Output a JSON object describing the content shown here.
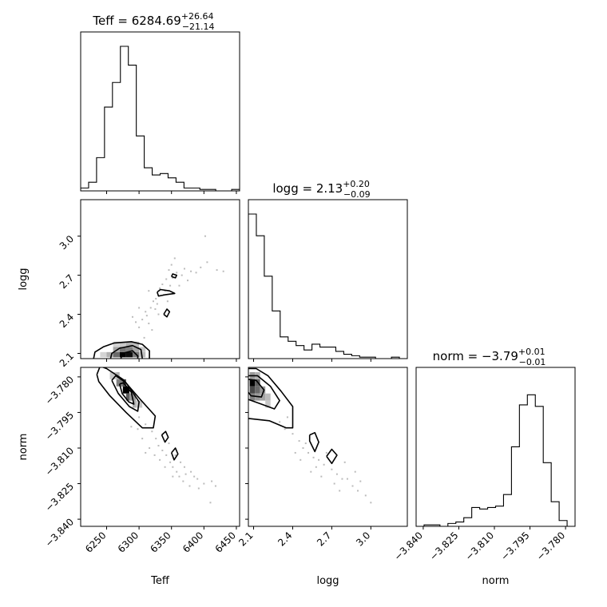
{
  "chart_data": {
    "type": "corner",
    "parameters": [
      {
        "name": "Teff",
        "label": "Teff",
        "median": "6284.69",
        "plus": "+26.64",
        "minus": "−21.14",
        "range": [
          6210,
          6455
        ],
        "ticks": [
          6250,
          6300,
          6350,
          6400,
          6450
        ],
        "tick_labels": [
          "6250",
          "6300",
          "6350",
          "6400",
          "6450"
        ]
      },
      {
        "name": "logg",
        "label": "logg",
        "median": "2.13",
        "plus": "+0.20",
        "minus": "−0.09",
        "range": [
          2.06,
          3.28
        ],
        "ticks": [
          2.1,
          2.4,
          2.7,
          3.0
        ],
        "tick_labels": [
          "2.1",
          "2.4",
          "2.7",
          "3.0"
        ]
      },
      {
        "name": "norm",
        "label": "norm",
        "median": "−3.79",
        "plus": "+0.01",
        "minus": "−0.01",
        "range": [
          -3.843,
          -3.776
        ],
        "ticks": [
          -3.84,
          -3.825,
          -3.81,
          -3.795,
          -3.78
        ],
        "tick_labels": [
          "−3.840",
          "−3.825",
          "−3.810",
          "−3.795",
          "−3.780"
        ]
      }
    ],
    "titles": [
      {
        "prefix": "Teff = 6284.69",
        "plus": "+26.64",
        "minus": "−21.14"
      },
      {
        "prefix": "logg = 2.13",
        "plus": "+0.20",
        "minus": "−0.09"
      },
      {
        "prefix": "norm = −3.79",
        "plus": "+0.01",
        "minus": "−0.01"
      }
    ],
    "histograms": {
      "Teff": [
        0.02,
        0.06,
        0.23,
        0.58,
        0.75,
        1.0,
        0.87,
        0.38,
        0.16,
        0.11,
        0.12,
        0.09,
        0.06,
        0.02,
        0.02,
        0.01,
        0.01,
        0.0,
        0.0,
        0.01
      ],
      "logg": [
        1.0,
        0.85,
        0.57,
        0.33,
        0.15,
        0.12,
        0.09,
        0.06,
        0.1,
        0.08,
        0.08,
        0.05,
        0.03,
        0.02,
        0.01,
        0.01,
        0.0,
        0.0,
        0.01,
        0.0
      ],
      "norm": [
        0.0,
        0.01,
        0.01,
        0.0,
        0.02,
        0.03,
        0.06,
        0.13,
        0.12,
        0.13,
        0.14,
        0.22,
        0.55,
        0.84,
        0.91,
        0.83,
        0.44,
        0.17,
        0.04,
        0.0
      ]
    },
    "density_cells": {
      "Teff_logg": [
        {
          "x": 6275,
          "y": 2.09,
          "v": 1.0
        },
        {
          "x": 6285,
          "y": 2.09,
          "v": 0.95
        },
        {
          "x": 6265,
          "y": 2.09,
          "v": 0.55
        },
        {
          "x": 6295,
          "y": 2.09,
          "v": 0.5
        },
        {
          "x": 6275,
          "y": 2.13,
          "v": 0.5
        },
        {
          "x": 6285,
          "y": 2.13,
          "v": 0.45
        },
        {
          "x": 6265,
          "y": 2.13,
          "v": 0.3
        },
        {
          "x": 6295,
          "y": 2.13,
          "v": 0.3
        },
        {
          "x": 6255,
          "y": 2.09,
          "v": 0.25
        },
        {
          "x": 6305,
          "y": 2.09,
          "v": 0.2
        },
        {
          "x": 6285,
          "y": 2.17,
          "v": 0.25
        },
        {
          "x": 6295,
          "y": 2.17,
          "v": 0.2
        },
        {
          "x": 6275,
          "y": 2.17,
          "v": 0.15
        },
        {
          "x": 6265,
          "y": 2.17,
          "v": 0.1
        },
        {
          "x": 6305,
          "y": 2.13,
          "v": 0.15
        },
        {
          "x": 6245,
          "y": 2.09,
          "v": 0.1
        }
      ],
      "Teff_norm": [
        {
          "x": 6280,
          "y": -3.7855,
          "v": 1.0
        },
        {
          "x": 6275,
          "y": -3.7825,
          "v": 0.7
        },
        {
          "x": 6285,
          "y": -3.7885,
          "v": 0.6
        },
        {
          "x": 6270,
          "y": -3.7825,
          "v": 0.45
        },
        {
          "x": 6290,
          "y": -3.7885,
          "v": 0.35
        },
        {
          "x": 6265,
          "y": -3.7795,
          "v": 0.25
        },
        {
          "x": 6295,
          "y": -3.7915,
          "v": 0.25
        },
        {
          "x": 6260,
          "y": -3.7795,
          "v": 0.15
        },
        {
          "x": 6300,
          "y": -3.7915,
          "v": 0.15
        }
      ],
      "logg_norm": [
        {
          "x": 2.09,
          "y": -3.7825,
          "v": 1.0
        },
        {
          "x": 2.09,
          "y": -3.7855,
          "v": 0.7
        },
        {
          "x": 2.13,
          "y": -3.7825,
          "v": 0.6
        },
        {
          "x": 2.13,
          "y": -3.7855,
          "v": 0.55
        },
        {
          "x": 2.09,
          "y": -3.7885,
          "v": 0.45
        },
        {
          "x": 2.17,
          "y": -3.7855,
          "v": 0.35
        },
        {
          "x": 2.17,
          "y": -3.7885,
          "v": 0.3
        },
        {
          "x": 2.13,
          "y": -3.7885,
          "v": 0.35
        },
        {
          "x": 2.21,
          "y": -3.7885,
          "v": 0.2
        },
        {
          "x": 2.09,
          "y": -3.7795,
          "v": 0.35
        },
        {
          "x": 2.13,
          "y": -3.7795,
          "v": 0.25
        },
        {
          "x": 2.21,
          "y": -3.7915,
          "v": 0.15
        }
      ]
    },
    "contours": {
      "Teff_logg": [
        [
          [
            6230,
            2.06
          ],
          [
            6232,
            2.11
          ],
          [
            6245,
            2.15
          ],
          [
            6262,
            2.18
          ],
          [
            6288,
            2.19
          ],
          [
            6305,
            2.17
          ],
          [
            6316,
            2.12
          ],
          [
            6316,
            2.06
          ]
        ],
        [
          [
            6256,
            2.06
          ],
          [
            6258,
            2.1
          ],
          [
            6270,
            2.14
          ],
          [
            6290,
            2.16
          ],
          [
            6303,
            2.13
          ],
          [
            6305,
            2.06
          ]
        ],
        [
          [
            6272,
            2.06
          ],
          [
            6274,
            2.1
          ],
          [
            6290,
            2.12
          ],
          [
            6298,
            2.08
          ],
          [
            6298,
            2.06
          ]
        ],
        [
          [
            6338,
            2.4
          ],
          [
            6343,
            2.38
          ],
          [
            6347,
            2.42
          ],
          [
            6343,
            2.44
          ],
          [
            6338,
            2.4
          ]
        ],
        [
          [
            6328,
            2.57
          ],
          [
            6333,
            2.59
          ],
          [
            6347,
            2.58
          ],
          [
            6355,
            2.56
          ],
          [
            6340,
            2.55
          ],
          [
            6330,
            2.54
          ],
          [
            6328,
            2.57
          ]
        ],
        [
          [
            6350,
            2.69
          ],
          [
            6356,
            2.68
          ],
          [
            6358,
            2.7
          ],
          [
            6352,
            2.71
          ],
          [
            6350,
            2.69
          ]
        ]
      ],
      "Teff_norm": [
        [
          [
            6235,
            -3.779
          ],
          [
            6240,
            -3.7755
          ],
          [
            6250,
            -3.7765
          ],
          [
            6275,
            -3.781
          ],
          [
            6302,
            -3.7895
          ],
          [
            6325,
            -3.7965
          ],
          [
            6322,
            -3.8015
          ],
          [
            6305,
            -3.8015
          ],
          [
            6280,
            -3.795
          ],
          [
            6255,
            -3.788
          ],
          [
            6238,
            -3.782
          ],
          [
            6235,
            -3.779
          ]
        ],
        [
          [
            6258,
            -3.7815
          ],
          [
            6264,
            -3.7795
          ],
          [
            6280,
            -3.7825
          ],
          [
            6300,
            -3.7905
          ],
          [
            6298,
            -3.7945
          ],
          [
            6285,
            -3.7925
          ],
          [
            6268,
            -3.787
          ],
          [
            6258,
            -3.7815
          ]
        ],
        [
          [
            6270,
            -3.783
          ],
          [
            6276,
            -3.7825
          ],
          [
            6288,
            -3.7865
          ],
          [
            6292,
            -3.7915
          ],
          [
            6284,
            -3.7905
          ],
          [
            6274,
            -3.787
          ],
          [
            6270,
            -3.783
          ]
        ],
        [
          [
            6335,
            -3.8045
          ],
          [
            6341,
            -3.803
          ],
          [
            6345,
            -3.8055
          ],
          [
            6340,
            -3.8075
          ],
          [
            6335,
            -3.8045
          ]
        ],
        [
          [
            6350,
            -3.812
          ],
          [
            6356,
            -3.81
          ],
          [
            6360,
            -3.8125
          ],
          [
            6354,
            -3.815
          ],
          [
            6350,
            -3.812
          ]
        ]
      ],
      "logg_norm": [
        [
          [
            2.06,
            -3.7765
          ],
          [
            2.12,
            -3.7765
          ],
          [
            2.21,
            -3.7795
          ],
          [
            2.31,
            -3.786
          ],
          [
            2.4,
            -3.7925
          ],
          [
            2.4,
            -3.8015
          ],
          [
            2.35,
            -3.8015
          ],
          [
            2.22,
            -3.7985
          ],
          [
            2.06,
            -3.7975
          ]
        ],
        [
          [
            2.06,
            -3.7795
          ],
          [
            2.13,
            -3.7795
          ],
          [
            2.23,
            -3.784
          ],
          [
            2.3,
            -3.79
          ],
          [
            2.26,
            -3.7935
          ],
          [
            2.16,
            -3.7915
          ],
          [
            2.06,
            -3.7895
          ]
        ],
        [
          [
            2.06,
            -3.781
          ],
          [
            2.12,
            -3.7815
          ],
          [
            2.18,
            -3.7855
          ],
          [
            2.16,
            -3.7885
          ],
          [
            2.08,
            -3.788
          ],
          [
            2.06,
            -3.7865
          ]
        ],
        [
          [
            2.53,
            -3.8045
          ],
          [
            2.57,
            -3.8035
          ],
          [
            2.6,
            -3.8075
          ],
          [
            2.57,
            -3.8115
          ],
          [
            2.53,
            -3.807
          ],
          [
            2.53,
            -3.8045
          ]
        ],
        [
          [
            2.66,
            -3.8135
          ],
          [
            2.7,
            -3.8105
          ],
          [
            2.74,
            -3.813
          ],
          [
            2.7,
            -3.8165
          ],
          [
            2.66,
            -3.8135
          ]
        ]
      ]
    },
    "scatter": {
      "Teff_logg": [
        [
          6300,
          2.3
        ],
        [
          6305,
          2.36
        ],
        [
          6312,
          2.39
        ],
        [
          6318,
          2.45
        ],
        [
          6322,
          2.5
        ],
        [
          6310,
          2.42
        ],
        [
          6326,
          2.52
        ],
        [
          6332,
          2.6
        ],
        [
          6336,
          2.63
        ],
        [
          6342,
          2.67
        ],
        [
          6346,
          2.74
        ],
        [
          6350,
          2.78
        ],
        [
          6355,
          2.83
        ],
        [
          6340,
          2.58
        ],
        [
          6348,
          2.62
        ],
        [
          6352,
          2.68
        ],
        [
          6358,
          2.72
        ],
        [
          6362,
          2.62
        ],
        [
          6366,
          2.7
        ],
        [
          6370,
          2.75
        ],
        [
          6375,
          2.66
        ],
        [
          6380,
          2.73
        ],
        [
          6388,
          2.72
        ],
        [
          6395,
          2.76
        ],
        [
          6405,
          2.8
        ],
        [
          6402,
          3.0
        ],
        [
          6420,
          2.74
        ],
        [
          6430,
          2.73
        ],
        [
          6315,
          2.33
        ],
        [
          6320,
          2.28
        ],
        [
          6330,
          2.4
        ],
        [
          6328,
          2.48
        ],
        [
          6338,
          2.55
        ],
        [
          6344,
          2.5
        ],
        [
          6295,
          2.34
        ],
        [
          6290,
          2.38
        ],
        [
          6308,
          2.22
        ],
        [
          6325,
          2.44
        ],
        [
          6315,
          2.58
        ],
        [
          6300,
          2.45
        ]
      ],
      "Teff_norm": [
        [
          6300,
          -3.797
        ],
        [
          6310,
          -3.8
        ],
        [
          6320,
          -3.803
        ],
        [
          6326,
          -3.806
        ],
        [
          6330,
          -3.809
        ],
        [
          6336,
          -3.811
        ],
        [
          6342,
          -3.813
        ],
        [
          6348,
          -3.816
        ],
        [
          6352,
          -3.818
        ],
        [
          6358,
          -3.82
        ],
        [
          6362,
          -3.822
        ],
        [
          6368,
          -3.824
        ],
        [
          6372,
          -3.821
        ],
        [
          6378,
          -3.826
        ],
        [
          6385,
          -3.822
        ],
        [
          6392,
          -3.827
        ],
        [
          6400,
          -3.825
        ],
        [
          6412,
          -3.824
        ],
        [
          6418,
          -3.826
        ],
        [
          6410,
          -3.833
        ],
        [
          6316,
          -3.81
        ],
        [
          6324,
          -3.813
        ],
        [
          6332,
          -3.815
        ],
        [
          6346,
          -3.808
        ],
        [
          6356,
          -3.813
        ],
        [
          6364,
          -3.816
        ],
        [
          6370,
          -3.818
        ],
        [
          6380,
          -3.82
        ],
        [
          6390,
          -3.823
        ],
        [
          6305,
          -3.806
        ],
        [
          6298,
          -3.802
        ],
        [
          6340,
          -3.818
        ],
        [
          6352,
          -3.822
        ],
        [
          6288,
          -3.801
        ],
        [
          6310,
          -3.812
        ]
      ],
      "logg_norm": [
        [
          2.3,
          -3.799
        ],
        [
          2.34,
          -3.802
        ],
        [
          2.4,
          -3.804
        ],
        [
          2.45,
          -3.807
        ],
        [
          2.48,
          -3.81
        ],
        [
          2.52,
          -3.812
        ],
        [
          2.56,
          -3.814
        ],
        [
          2.6,
          -3.815
        ],
        [
          2.64,
          -3.817
        ],
        [
          2.7,
          -3.819
        ],
        [
          2.74,
          -3.821
        ],
        [
          2.78,
          -3.823
        ],
        [
          2.82,
          -3.823
        ],
        [
          2.86,
          -3.826
        ],
        [
          2.9,
          -3.828
        ],
        [
          2.96,
          -3.83
        ],
        [
          3.0,
          -3.833
        ],
        [
          2.5,
          -3.808
        ],
        [
          2.58,
          -3.818
        ],
        [
          2.66,
          -3.812
        ],
        [
          2.72,
          -3.825
        ],
        [
          2.8,
          -3.816
        ],
        [
          2.88,
          -3.82
        ],
        [
          2.36,
          -3.797
        ],
        [
          2.42,
          -3.812
        ],
        [
          2.62,
          -3.822
        ],
        [
          2.76,
          -3.828
        ],
        [
          2.92,
          -3.824
        ],
        [
          2.46,
          -3.815
        ],
        [
          2.54,
          -3.82
        ]
      ]
    }
  }
}
